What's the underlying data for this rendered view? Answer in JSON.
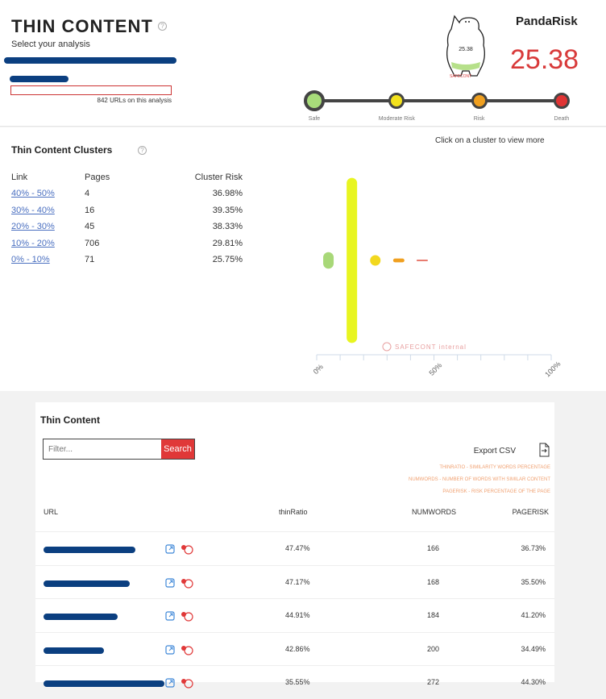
{
  "header": {
    "title": "THIN CONTENT",
    "help_icon": "question-circle-icon",
    "select_label": "Select your analysis",
    "url_count": "842 URLs on this analysis"
  },
  "panda": {
    "title": "PandaRisk",
    "score": "25.38",
    "mascot_value": "25.38",
    "mascot_brand": "SAFECONT",
    "score_color": "#d83a3a",
    "levels": [
      {
        "label": "Safe",
        "color": "#a8dc7a",
        "active": true
      },
      {
        "label": "Moderate Risk",
        "color": "#f3e21c"
      },
      {
        "label": "Risk",
        "color": "#f0a020"
      },
      {
        "label": "Death",
        "color": "#e03434"
      }
    ]
  },
  "clusters": {
    "title": "Thin Content Clusters",
    "hint": "Click on a cluster to view more",
    "columns": [
      "Link",
      "Pages",
      "Cluster Risk"
    ],
    "rows": [
      {
        "link": "40% - 50%",
        "pages": "4",
        "risk": "36.98%"
      },
      {
        "link": "30% - 40%",
        "pages": "16",
        "risk": "39.35%"
      },
      {
        "link": "20% - 30%",
        "pages": "45",
        "risk": "38.33%"
      },
      {
        "link": "10% - 20%",
        "pages": "706",
        "risk": "29.81%"
      },
      {
        "link": "0% - 10%",
        "pages": "71",
        "risk": "25.75%"
      }
    ]
  },
  "chart_data": {
    "type": "bubble",
    "x_ticks": [
      "0%",
      "50%",
      "100%"
    ],
    "xlim": [
      0,
      100
    ],
    "watermark": "SAFECONT internal",
    "points": [
      {
        "bin": "0% - 10%",
        "x": 5,
        "pages": 71,
        "color": "#a8d878"
      },
      {
        "bin": "10% - 20%",
        "x": 15,
        "pages": 706,
        "color": "#e8f520"
      },
      {
        "bin": "20% - 30%",
        "x": 25,
        "pages": 45,
        "color": "#f2d81e"
      },
      {
        "bin": "30% - 40%",
        "x": 35,
        "pages": 16,
        "color": "#f0a020"
      },
      {
        "bin": "40% - 50%",
        "x": 45,
        "pages": 4,
        "color": "#e05040"
      }
    ]
  },
  "table": {
    "title": "Thin Content",
    "filter_placeholder": "Filter...",
    "search_label": "Search",
    "export_label": "Export CSV",
    "notes": [
      "THINRATIO - SIMILARITY WORDS PERCENTAGE",
      "NUMWORDS - NUMBER OF WORDS WITH SIMILAR CONTENT",
      "PAGERISK - RISK PERCENTAGE OF THE PAGE"
    ],
    "columns": [
      "URL",
      "thinRatio",
      "NUMWORDS",
      "PAGERISK"
    ],
    "rows": [
      {
        "thin": "47.47%",
        "words": "166",
        "risk": "36.73%"
      },
      {
        "thin": "47.17%",
        "words": "168",
        "risk": "35.50%"
      },
      {
        "thin": "44.91%",
        "words": "184",
        "risk": "41.20%"
      },
      {
        "thin": "42.86%",
        "words": "200",
        "risk": "34.49%"
      },
      {
        "thin": "35.55%",
        "words": "272",
        "risk": "44.30%"
      }
    ]
  }
}
